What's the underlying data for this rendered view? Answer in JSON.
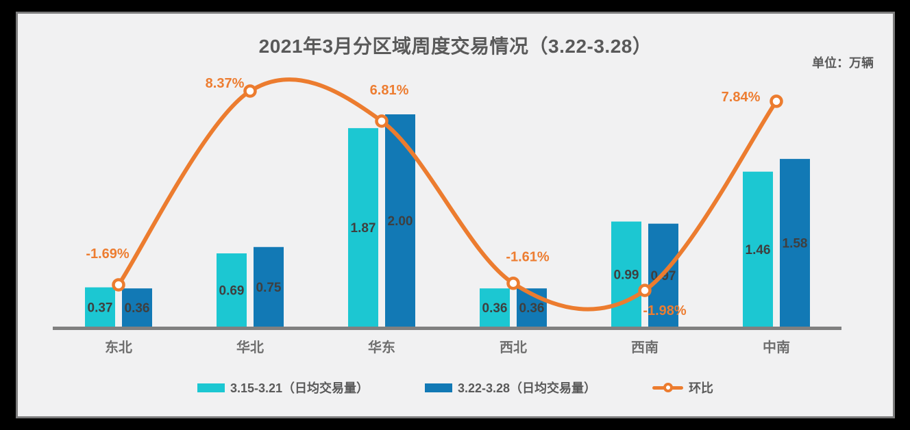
{
  "title": "2021年3月分区域周度交易情况（3.22-3.28）",
  "unit_label": "单位：万辆",
  "colors": {
    "frame_bg": "#000000",
    "panel_bg": "#f1f1f2",
    "panel_border": "#7c7c7c",
    "axis": "#808080",
    "series1": "#1cc7d2",
    "series2": "#1279b5",
    "line": "#ec7c2f",
    "pct_label": "#ed7d31",
    "title_text": "#595959",
    "category_text": "#6e6e6e",
    "bar_label_text": "#3f3f3f"
  },
  "legend": {
    "items": [
      {
        "type": "bar",
        "label": "3.15-3.21（日均交易量）",
        "color": "#1cc7d2"
      },
      {
        "type": "bar",
        "label": "3.22-3.28（日均交易量）",
        "color": "#1279b5"
      },
      {
        "type": "line",
        "label": "环比",
        "color": "#ec7c2f"
      }
    ]
  },
  "chart_data": {
    "type": "combo",
    "title": "2021年3月分区域周度交易情况（3.22-3.28）",
    "unit": "万辆",
    "categories": [
      "东北",
      "华北",
      "华东",
      "西北",
      "西南",
      "中南"
    ],
    "series": [
      {
        "name": "3.15-3.21（日均交易量）",
        "type": "bar",
        "color": "#1cc7d2",
        "values": [
          0.37,
          0.69,
          1.87,
          0.36,
          0.99,
          1.46
        ],
        "labels": [
          "0.37",
          "0.69",
          "1.87",
          "0.36",
          "0.99",
          "1.46"
        ]
      },
      {
        "name": "3.22-3.28（日均交易量）",
        "type": "bar",
        "color": "#1279b5",
        "values": [
          0.36,
          0.75,
          2.0,
          0.36,
          0.97,
          1.58
        ],
        "labels": [
          "0.36",
          "0.75",
          "2.00",
          "0.36",
          "0.97",
          "1.58"
        ]
      },
      {
        "name": "环比",
        "type": "line",
        "color": "#ec7c2f",
        "values_pct": [
          -1.69,
          8.37,
          6.81,
          -1.61,
          -1.98,
          7.84
        ],
        "labels": [
          "-1.69%",
          "8.37%",
          "6.81%",
          "-1.61%",
          "-1.98%",
          "7.84%"
        ],
        "label_offsets": [
          [
            -16,
            -46
          ],
          [
            -37,
            -12
          ],
          [
            11,
            -46
          ],
          [
            21,
            -39
          ],
          [
            29,
            29
          ],
          [
            -52,
            -7
          ]
        ]
      }
    ],
    "grid": false,
    "legend_position": "bottom",
    "smooth_line": true
  }
}
